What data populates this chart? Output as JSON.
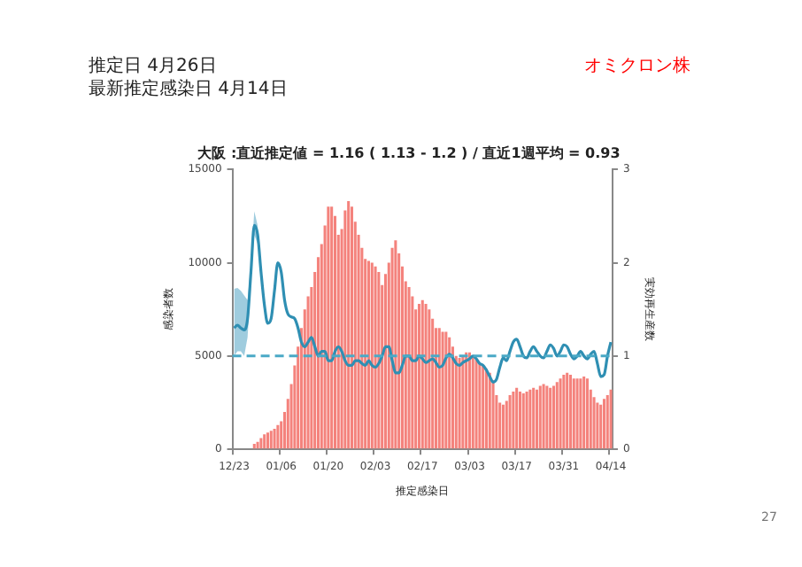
{
  "chart_data": {
    "type": "bar",
    "title": "大阪 :直近推定値 = 1.16 ( 1.13 - 1.2 ) / 直近1週平均 = 0.93",
    "xlabel": "推定感染日",
    "ylabel": "感染者数",
    "y2label": "実効再生産数",
    "annotations": [
      "推定日  4月26日",
      "最新推定感染日  4月14日",
      "オミクロン株",
      "27"
    ],
    "categories": [
      "12/23",
      null,
      null,
      null,
      null,
      null,
      null,
      null,
      null,
      null,
      null,
      null,
      null,
      null,
      "01/06",
      null,
      null,
      null,
      null,
      null,
      null,
      null,
      null,
      null,
      null,
      null,
      null,
      null,
      "01/20",
      null,
      null,
      null,
      null,
      null,
      null,
      null,
      null,
      null,
      null,
      null,
      null,
      null,
      "02/03",
      null,
      null,
      null,
      null,
      null,
      null,
      null,
      null,
      null,
      null,
      null,
      null,
      null,
      "02/17",
      null,
      null,
      null,
      null,
      null,
      null,
      null,
      null,
      null,
      null,
      null,
      null,
      null,
      "03/03",
      null,
      null,
      null,
      null,
      null,
      null,
      null,
      null,
      null,
      null,
      null,
      null,
      null,
      "03/17",
      null,
      null,
      null,
      null,
      null,
      null,
      null,
      null,
      null,
      null,
      null,
      null,
      null,
      "03/31",
      null,
      null,
      null,
      null,
      null,
      null,
      null,
      null,
      null,
      null,
      null,
      null,
      null,
      "04/14"
    ],
    "series": [
      {
        "color": "#f4827c",
        "values": [
          0,
          0,
          0,
          0,
          0,
          0,
          300,
          400,
          600,
          800,
          900,
          1000,
          1100,
          1300,
          1500,
          2000,
          2700,
          3500,
          4500,
          5500,
          6500,
          7500,
          8200,
          8700,
          9500,
          10300,
          11000,
          12000,
          13000,
          13000,
          12500,
          11500,
          11800,
          12800,
          13300,
          13000,
          12200,
          11500,
          10800,
          10200,
          10100,
          10000,
          9800,
          9500,
          8800,
          9400,
          10000,
          10800,
          11200,
          10500,
          9800,
          9000,
          8700,
          8200,
          7500,
          7800,
          8000,
          7800,
          7500,
          7000,
          6500,
          6500,
          6300,
          6300,
          6000,
          5500,
          5000,
          4900,
          5000,
          5200,
          5200,
          5000,
          4800,
          4600,
          4500,
          4300,
          4100,
          3700,
          2900,
          2500,
          2400,
          2600,
          2900,
          3100,
          3300,
          3100,
          3000,
          3100,
          3200,
          3300,
          3200,
          3400,
          3500,
          3400,
          3300,
          3400,
          3600,
          3800,
          4000,
          4100,
          4000,
          3800,
          3800,
          3800,
          3900,
          3800,
          3200,
          2800,
          2500,
          2400,
          2700,
          2900,
          3200
        ]
      },
      {
        "type": "line",
        "axis": "y2",
        "color": "#2f8fb3",
        "values": [
          1.3,
          1.33,
          1.3,
          1.28,
          1.4,
          1.9,
          2.4,
          2.3,
          1.9,
          1.55,
          1.35,
          1.4,
          1.7,
          2.0,
          1.9,
          1.6,
          1.45,
          1.42,
          1.4,
          1.3,
          1.15,
          1.1,
          1.15,
          1.2,
          1.1,
          1.0,
          1.05,
          1.05,
          0.95,
          0.95,
          1.05,
          1.1,
          1.05,
          0.95,
          0.9,
          0.9,
          0.95,
          0.95,
          0.92,
          0.9,
          0.95,
          0.9,
          0.88,
          0.92,
          1.0,
          1.1,
          1.1,
          0.95,
          0.82,
          0.82,
          0.9,
          1.0,
          1.0,
          0.95,
          0.95,
          1.0,
          0.97,
          0.93,
          0.95,
          0.97,
          0.93,
          0.88,
          0.9,
          0.98,
          1.02,
          0.98,
          0.92,
          0.9,
          0.93,
          0.95,
          0.97,
          1.0,
          0.97,
          0.92,
          0.9,
          0.85,
          0.78,
          0.72,
          0.75,
          0.88,
          0.98,
          0.95,
          1.05,
          1.15,
          1.18,
          1.1,
          1.0,
          0.98,
          1.05,
          1.1,
          1.05,
          1.0,
          0.98,
          1.05,
          1.12,
          1.08,
          1.0,
          1.05,
          1.12,
          1.1,
          1.02,
          0.97,
          1.0,
          1.05,
          1.0,
          0.97,
          1.02,
          1.05,
          0.92,
          0.78,
          0.8,
          1.0,
          1.15
        ],
        "lower": [
          1.0,
          1.05,
          1.05,
          1.0,
          1.2,
          1.8,
          2.3,
          2.2,
          null,
          null,
          null,
          null,
          null,
          null,
          null,
          null,
          null,
          null,
          null,
          null,
          null,
          null,
          null,
          null,
          null,
          null,
          null,
          null,
          null,
          null,
          null,
          null,
          null,
          null,
          null,
          null,
          null,
          null,
          null,
          null,
          null,
          null,
          null,
          null,
          null,
          null,
          null,
          null,
          null,
          null,
          null,
          null,
          null,
          null,
          null,
          null,
          null,
          null,
          null,
          null,
          null,
          null,
          null,
          null,
          null,
          null,
          null,
          null,
          null,
          null,
          null,
          null,
          null,
          null,
          null,
          null,
          null,
          null,
          null,
          null,
          null,
          null,
          null,
          null,
          null,
          null,
          null,
          null,
          null,
          null,
          null,
          null,
          null,
          null,
          null,
          null,
          null,
          null,
          null,
          null,
          null,
          null,
          null,
          null,
          null,
          null,
          null,
          null,
          null,
          null,
          null,
          null,
          null
        ],
        "upper": [
          1.72,
          1.73,
          1.7,
          1.65,
          1.6,
          2.0,
          2.55,
          2.4,
          null,
          null,
          null,
          null,
          null,
          null,
          null,
          null,
          null,
          null,
          null,
          null,
          null,
          null,
          null,
          null,
          null,
          null,
          null,
          null,
          null,
          null,
          null,
          null,
          null,
          null,
          null,
          null,
          null,
          null,
          null,
          null,
          null,
          null,
          null,
          null,
          null,
          null,
          null,
          null,
          null,
          null,
          null,
          null,
          null,
          null,
          null,
          null,
          null,
          null,
          null,
          null,
          null,
          null,
          null,
          null,
          null,
          null,
          null,
          null,
          null,
          null,
          null,
          null,
          null,
          null,
          null,
          null,
          null,
          null,
          null,
          null,
          null,
          null,
          null,
          null,
          null,
          null,
          null,
          null,
          null,
          null,
          null,
          null,
          null,
          null,
          null,
          null,
          null,
          null,
          null,
          null,
          null,
          null,
          null,
          null,
          null,
          null,
          null,
          null,
          null,
          null,
          null,
          null,
          null
        ]
      }
    ],
    "ylim": [
      0,
      15000
    ],
    "yticks": [
      0,
      5000,
      10000,
      15000
    ],
    "y2lim": [
      0,
      3
    ],
    "y2ticks": [
      0,
      1,
      2,
      3
    ],
    "ref_lines": [
      {
        "axis": "y2",
        "value": 1,
        "color": "#4aa9c6",
        "line_style": "dashed"
      }
    ],
    "grid": false,
    "legend": false,
    "marker": "none"
  }
}
